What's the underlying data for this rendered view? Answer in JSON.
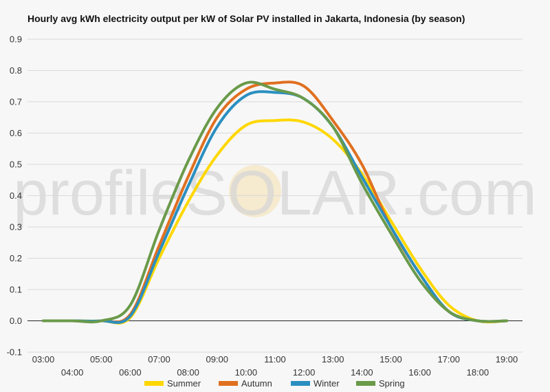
{
  "chart_data": {
    "type": "line",
    "title": "Hourly avg kWh electricity output per kW of Solar PV installed in Jakarta, Indonesia (by season)",
    "xlabel": "",
    "ylabel": "",
    "ylim": [
      -0.1,
      0.9
    ],
    "yticks": [
      "-0.1",
      "0.0",
      "0.1",
      "0.2",
      "0.3",
      "0.4",
      "0.5",
      "0.6",
      "0.7",
      "0.8",
      "0.9"
    ],
    "x": [
      "03:00",
      "04:00",
      "05:00",
      "06:00",
      "07:00",
      "08:00",
      "09:00",
      "10:00",
      "11:00",
      "12:00",
      "13:00",
      "14:00",
      "15:00",
      "16:00",
      "17:00",
      "18:00",
      "19:00"
    ],
    "grid": true,
    "legend_position": "bottom",
    "watermark": "profileSOLAR.com",
    "series": [
      {
        "name": "Summer",
        "color": "#FFD700",
        "values": [
          0,
          0,
          0,
          0.01,
          0.2,
          0.38,
          0.53,
          0.625,
          0.64,
          0.635,
          0.58,
          0.47,
          0.32,
          0.17,
          0.05,
          0.0,
          0.0
        ]
      },
      {
        "name": "Autumn",
        "color": "#E07020",
        "values": [
          0,
          0,
          0,
          0.02,
          0.24,
          0.46,
          0.65,
          0.74,
          0.76,
          0.75,
          0.64,
          0.5,
          0.3,
          0.15,
          0.03,
          0.0,
          0.0
        ]
      },
      {
        "name": "Winter",
        "color": "#2A8FC0",
        "values": [
          0,
          0,
          0,
          0.015,
          0.22,
          0.43,
          0.62,
          0.72,
          0.73,
          0.71,
          0.62,
          0.46,
          0.3,
          0.15,
          0.03,
          0.0,
          0.0
        ]
      },
      {
        "name": "Spring",
        "color": "#6A9A4A",
        "values": [
          0,
          0,
          0,
          0.05,
          0.29,
          0.51,
          0.68,
          0.76,
          0.74,
          0.71,
          0.62,
          0.44,
          0.28,
          0.13,
          0.03,
          0.0,
          0.0
        ]
      }
    ]
  }
}
